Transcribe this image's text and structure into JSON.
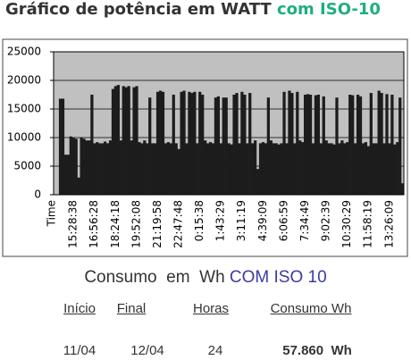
{
  "chart_data": {
    "type": "bar",
    "title": "Gráfico de potência em WATT",
    "title_highlight": "com ISO-10",
    "x_label": "Time",
    "categories": [
      null,
      null,
      null,
      null,
      null,
      null,
      null,
      "15:28:38",
      null,
      null,
      null,
      null,
      null,
      null,
      null,
      "16:56:28",
      null,
      null,
      null,
      null,
      null,
      null,
      null,
      "18:24:18",
      null,
      null,
      null,
      null,
      null,
      null,
      null,
      "19:52:08",
      null,
      null,
      null,
      null,
      null,
      null,
      null,
      "21:19:58",
      null,
      null,
      null,
      null,
      null,
      null,
      null,
      "22:47:48",
      null,
      null,
      null,
      null,
      null,
      null,
      null,
      "0:15:38",
      null,
      null,
      null,
      null,
      null,
      null,
      null,
      "1:43:29",
      null,
      null,
      null,
      null,
      null,
      null,
      null,
      "3:11:19",
      null,
      null,
      null,
      null,
      null,
      null,
      null,
      "4:39:09",
      null,
      null,
      null,
      null,
      null,
      null,
      null,
      "6:06:59",
      null,
      null,
      null,
      null,
      null,
      null,
      null,
      "7:34:49",
      null,
      null,
      null,
      null,
      null,
      null,
      null,
      "9:02:39",
      null,
      null,
      null,
      null,
      null,
      null,
      null,
      "10:30:29",
      null,
      null,
      null,
      null,
      null,
      null,
      null,
      "11:58:19",
      null,
      null,
      null,
      null,
      null,
      null,
      null,
      "13:26:09",
      null,
      null,
      null,
      null,
      null
    ],
    "values": [
      0,
      0,
      16800,
      16800,
      7000,
      7000,
      10200,
      10000,
      9800,
      3000,
      10000,
      9800,
      9500,
      9500,
      17500,
      9000,
      9200,
      9000,
      9000,
      9300,
      9000,
      9500,
      18500,
      19000,
      19200,
      9500,
      19000,
      18800,
      19000,
      9500,
      18800,
      19000,
      9200,
      9000,
      9500,
      9000,
      17000,
      9000,
      9000,
      18000,
      18200,
      18000,
      9000,
      9200,
      9000,
      17500,
      9000,
      8000,
      18000,
      18200,
      9000,
      18000,
      17800,
      18000,
      9000,
      18000,
      17500,
      9500,
      9000,
      9200,
      9000,
      17000,
      17200,
      9000,
      17000,
      17000,
      9000,
      8800,
      17500,
      17800,
      9000,
      18000,
      17500,
      9000,
      17800,
      9000,
      9500,
      4500,
      9000,
      9200,
      9000,
      17000,
      9500,
      9000,
      9000,
      8800,
      9000,
      18000,
      9000,
      18200,
      17800,
      9000,
      18000,
      9500,
      9200,
      17500,
      17600,
      17500,
      9000,
      17400,
      17500,
      9000,
      17200,
      9500,
      9000,
      9000,
      8800,
      17000,
      9000,
      9500,
      9000,
      9200,
      17500,
      17400,
      9000,
      17500,
      17200,
      9000,
      9200,
      8500,
      17800,
      9000,
      9000,
      18200,
      17800,
      9000,
      17600,
      9000,
      17500,
      8800,
      9200,
      17000,
      2000
    ],
    "color": "#1c1c1c",
    "ylim": [
      0,
      25000
    ],
    "yticks": [
      0,
      5000,
      10000,
      15000,
      20000,
      25000
    ],
    "grid": true
  },
  "summary": {
    "title": "Consumo  em  Wh",
    "title_highlight": "COM ISO 10",
    "table": {
      "header": [
        "Início",
        "Final",
        "Horas",
        "Consumo Wh"
      ],
      "rows": [
        [
          "11/04",
          "12/04",
          "24",
          "57.860  Wh"
        ]
      ]
    }
  }
}
